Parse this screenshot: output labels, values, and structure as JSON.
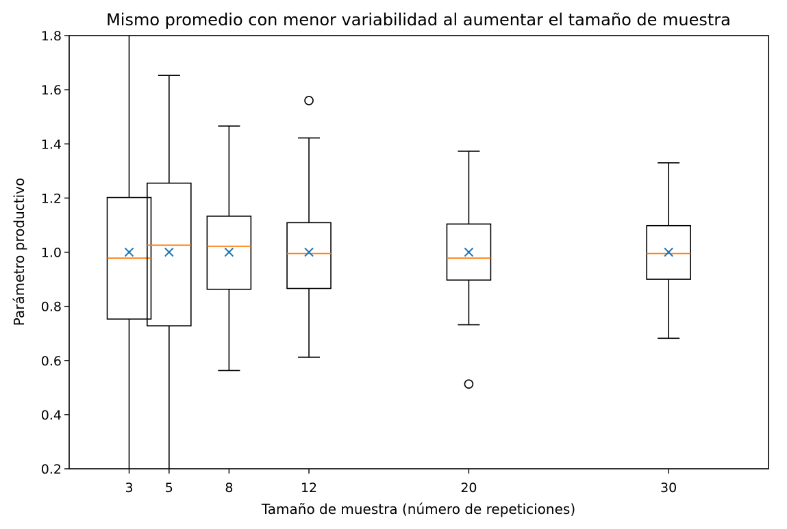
{
  "chart_data": {
    "type": "box",
    "title": "Mismo promedio con menor variabilidad al aumentar el tamaño de muestra",
    "xlabel": "Tamaño de muestra (número de repeticiones)",
    "ylabel": "Parámetro productivo",
    "ylim": [
      0.2,
      1.8
    ],
    "xlim": [
      0,
      35
    ],
    "yticks": [
      "0.2",
      "0.4",
      "0.6",
      "0.8",
      "1.0",
      "1.2",
      "1.4",
      "1.6",
      "1.8"
    ],
    "categories": [
      "3",
      "5",
      "8",
      "12",
      "20",
      "30"
    ],
    "boxes": [
      {
        "x": 3,
        "whisker_low": 0.2,
        "q1": 0.753,
        "median": 0.978,
        "q3": 1.202,
        "whisker_high": 1.8,
        "mean": 1.0,
        "outliers": []
      },
      {
        "x": 5,
        "whisker_low": 0.2,
        "q1": 0.728,
        "median": 1.026,
        "q3": 1.255,
        "whisker_high": 1.653,
        "mean": 1.0,
        "outliers": []
      },
      {
        "x": 8,
        "whisker_low": 0.563,
        "q1": 0.863,
        "median": 1.022,
        "q3": 1.133,
        "whisker_high": 1.466,
        "mean": 1.0,
        "outliers": []
      },
      {
        "x": 12,
        "whisker_low": 0.612,
        "q1": 0.866,
        "median": 0.995,
        "q3": 1.109,
        "whisker_high": 1.422,
        "mean": 1.0,
        "outliers": [
          1.56
        ]
      },
      {
        "x": 20,
        "whisker_low": 0.732,
        "q1": 0.897,
        "median": 0.978,
        "q3": 1.104,
        "whisker_high": 1.373,
        "mean": 1.0,
        "outliers": [
          0.513
        ]
      },
      {
        "x": 30,
        "whisker_low": 0.682,
        "q1": 0.9,
        "median": 0.995,
        "q3": 1.098,
        "whisker_high": 1.33,
        "mean": 1.0,
        "outliers": []
      }
    ],
    "grid": false,
    "colors": {
      "box": "#000000",
      "median": "#ff7f0e",
      "mean": "#1f77b4",
      "flier": "#000000"
    }
  }
}
